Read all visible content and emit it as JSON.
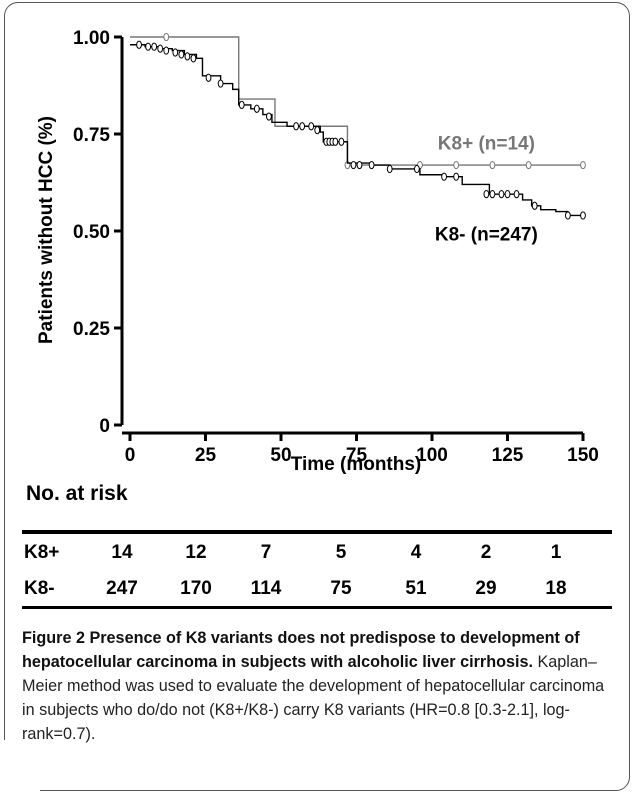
{
  "chart_data": {
    "type": "line",
    "subtype": "kaplan-meier",
    "ylabel": "Patients without HCC (%)",
    "xlabel": "Time (months)",
    "xlim": [
      0,
      150
    ],
    "ylim": [
      0,
      1
    ],
    "x_ticks": [
      "0",
      "25",
      "50",
      "75",
      "100",
      "125",
      "150"
    ],
    "y_ticks": [
      "0",
      "0.25",
      "0.50",
      "0.75",
      "1.00"
    ],
    "grid": false,
    "series": [
      {
        "name": "K8+ (n=14)",
        "color": "#777777",
        "step_x": [
          0,
          36,
          36,
          48,
          48,
          72,
          72,
          150
        ],
        "step_y": [
          1.0,
          1.0,
          0.84,
          0.84,
          0.77,
          0.77,
          0.67,
          0.67
        ],
        "censored": [
          [
            12,
            1.0
          ],
          [
            72,
            0.67
          ],
          [
            96,
            0.67
          ],
          [
            108,
            0.67
          ],
          [
            120,
            0.67
          ],
          [
            132,
            0.67
          ],
          [
            150,
            0.67
          ]
        ]
      },
      {
        "name": "K8- (n=247)",
        "color": "#000000",
        "step_x": [
          0,
          5,
          10,
          14,
          18,
          22,
          24,
          30,
          34,
          36,
          40,
          44,
          47,
          52,
          60,
          63,
          64,
          70,
          72,
          80,
          86,
          96,
          104,
          108,
          110,
          119,
          128,
          130,
          133,
          136,
          141,
          145,
          150
        ],
        "step_y": [
          0.98,
          0.975,
          0.97,
          0.965,
          0.955,
          0.945,
          0.9,
          0.88,
          0.865,
          0.825,
          0.815,
          0.8,
          0.78,
          0.77,
          0.77,
          0.755,
          0.73,
          0.73,
          0.675,
          0.67,
          0.66,
          0.645,
          0.64,
          0.64,
          0.62,
          0.595,
          0.595,
          0.58,
          0.565,
          0.555,
          0.55,
          0.54,
          0.54
        ],
        "censored": [
          [
            3,
            0.98
          ],
          [
            6,
            0.975
          ],
          [
            8,
            0.975
          ],
          [
            10,
            0.97
          ],
          [
            12,
            0.965
          ],
          [
            15,
            0.96
          ],
          [
            17,
            0.955
          ],
          [
            19,
            0.95
          ],
          [
            21,
            0.945
          ],
          [
            26,
            0.895
          ],
          [
            30,
            0.88
          ],
          [
            37,
            0.825
          ],
          [
            42,
            0.815
          ],
          [
            46,
            0.795
          ],
          [
            55,
            0.77
          ],
          [
            57,
            0.77
          ],
          [
            60,
            0.77
          ],
          [
            62,
            0.76
          ],
          [
            65,
            0.73
          ],
          [
            66,
            0.73
          ],
          [
            67,
            0.73
          ],
          [
            68,
            0.73
          ],
          [
            70,
            0.73
          ],
          [
            74,
            0.67
          ],
          [
            76,
            0.67
          ],
          [
            80,
            0.67
          ],
          [
            86,
            0.66
          ],
          [
            95,
            0.66
          ],
          [
            104,
            0.64
          ],
          [
            108,
            0.64
          ],
          [
            118,
            0.595
          ],
          [
            120,
            0.595
          ],
          [
            123,
            0.595
          ],
          [
            125,
            0.595
          ],
          [
            128,
            0.595
          ],
          [
            134,
            0.565
          ],
          [
            145,
            0.54
          ],
          [
            150,
            0.54
          ]
        ]
      }
    ],
    "annotations": [
      {
        "text": "K8+ (n=14)",
        "color": "#777777",
        "x": 118,
        "y": 0.71
      },
      {
        "text": "K8- (n=247)",
        "color": "#000000",
        "x": 118,
        "y": 0.475
      }
    ]
  },
  "risk_table": {
    "title": "No. at risk",
    "rows": [
      {
        "label": "K8+",
        "values": [
          "14",
          "12",
          "7",
          "5",
          "4",
          "2",
          "1"
        ]
      },
      {
        "label": "K8-",
        "values": [
          "247",
          "170",
          "114",
          "75",
          "51",
          "29",
          "18"
        ]
      }
    ]
  },
  "caption": {
    "bold": "Figure 2 Presence of K8 variants does not predispose to development of hepatocellular carcinoma in subjects with alcoholic liver cirrhosis.",
    "text": " Kaplan–Meier method was used to evaluate the development of hepatocellular carcinoma in subjects who do/do not (K8+/K8-) carry K8 variants (HR=0.8 [0.3-2.1], log-rank=0.7)."
  }
}
